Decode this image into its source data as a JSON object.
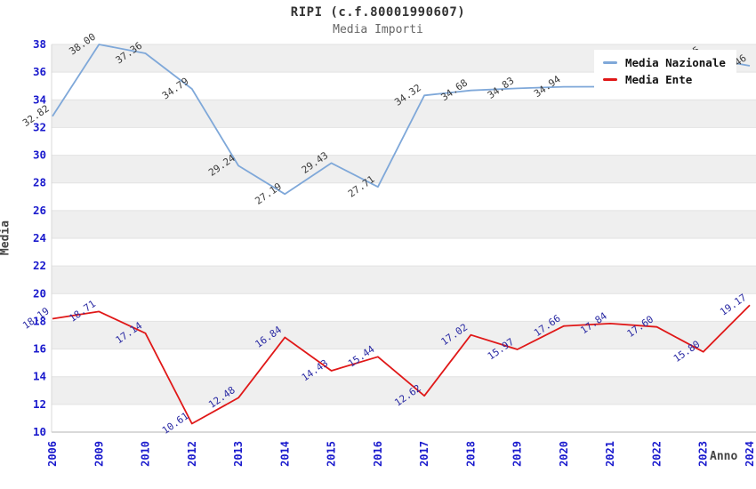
{
  "title": "RIPI (c.f.80001990607)",
  "subtitle": "Media Importi",
  "chart_data": {
    "type": "line",
    "xlabel": "Anno",
    "ylabel": "Media",
    "ylim": [
      10,
      38
    ],
    "ytick_step": 2,
    "grid": "alternating-bands",
    "legend_position": "top-right",
    "categories": [
      "2006",
      "2009",
      "2010",
      "2012",
      "2013",
      "2014",
      "2015",
      "2016",
      "2017",
      "2018",
      "2019",
      "2020",
      "2021",
      "2022",
      "2023",
      "2024"
    ],
    "series": [
      {
        "name": "Media Nazionale",
        "color": "#7fa8d9",
        "label_color": "#3c3c3c",
        "values": [
          32.82,
          38.0,
          37.36,
          34.79,
          29.24,
          27.19,
          29.43,
          27.71,
          34.32,
          34.68,
          34.83,
          34.94,
          34.95,
          35.0,
          37.05,
          36.46
        ],
        "labels": [
          "32.82",
          "38.00",
          "37.36",
          "34.79",
          "29.24",
          "27.19",
          "29.43",
          "27.71",
          "34.32",
          "34.68",
          "34.83",
          "34.94",
          "",
          "",
          "37.05",
          "36.46"
        ]
      },
      {
        "name": "Media Ente",
        "color": "#e01818",
        "label_color": "#2929a3",
        "values": [
          18.19,
          18.71,
          17.14,
          10.61,
          12.48,
          16.84,
          14.43,
          15.44,
          12.62,
          17.02,
          15.97,
          17.66,
          17.84,
          17.6,
          15.8,
          19.17
        ],
        "labels": [
          "18.19",
          "18.71",
          "17.14",
          "10.61",
          "12.48",
          "16.84",
          "14.43",
          "15.44",
          "12.62",
          "17.02",
          "15.97",
          "17.66",
          "17.84",
          "17.60",
          "15.80",
          "19.17"
        ]
      }
    ]
  },
  "theme": {
    "band_fill": "#efefef",
    "grid_line": "#e2e2e2",
    "axis_line": "#b3b3b3",
    "edge_line": "#d8d8d8",
    "tick_label": "#1a1acd",
    "title_color": "#333333",
    "subtitle_color": "#666666"
  }
}
